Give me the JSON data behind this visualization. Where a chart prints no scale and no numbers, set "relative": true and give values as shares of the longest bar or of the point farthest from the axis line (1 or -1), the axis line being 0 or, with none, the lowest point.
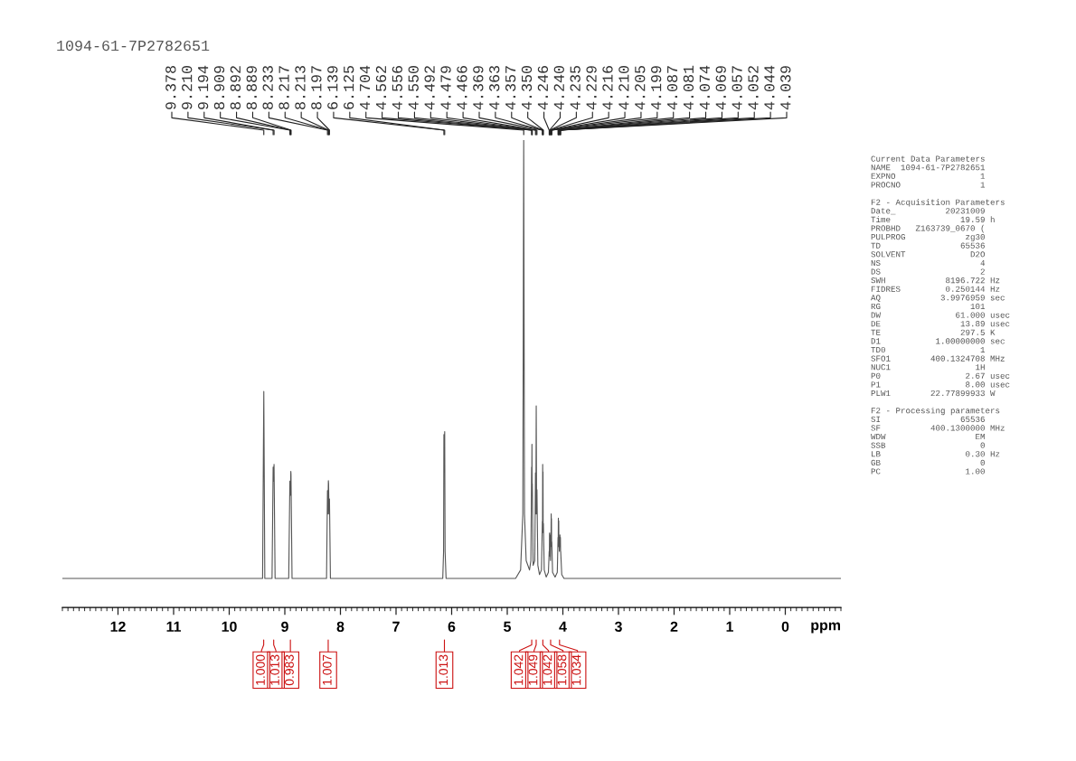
{
  "chart_data": {
    "type": "line",
    "title": "1094-61-7P2782651",
    "xlabel": "ppm",
    "relative": true,
    "xlim": [
      13,
      -1
    ],
    "xticks": [
      {
        "value": 13,
        "label": null
      },
      {
        "value": 12.9,
        "label": null
      },
      {
        "value": 12.8,
        "label": null
      },
      {
        "value": 12.7,
        "label": null
      },
      {
        "value": 12.6,
        "label": null
      },
      {
        "value": 12.5,
        "label": null
      },
      {
        "value": 12.4,
        "label": null
      },
      {
        "value": 12.3,
        "label": null
      },
      {
        "value": 12.2,
        "label": null
      },
      {
        "value": 12.1,
        "label": null
      },
      12,
      {
        "value": 11.9,
        "label": null
      },
      {
        "value": 11.8,
        "label": null
      },
      {
        "value": 11.7,
        "label": null
      },
      {
        "value": 11.6,
        "label": null
      },
      {
        "value": 11.5,
        "label": null
      },
      {
        "value": 11.4,
        "label": null
      },
      {
        "value": 11.3,
        "label": null
      },
      {
        "value": 11.2,
        "label": null
      },
      {
        "value": 11.1,
        "label": null
      },
      11,
      {
        "value": 10.9,
        "label": null
      },
      {
        "value": 10.8,
        "label": null
      },
      {
        "value": 10.7,
        "label": null
      },
      {
        "value": 10.6,
        "label": null
      },
      {
        "value": 10.5,
        "label": null
      },
      {
        "value": 10.4,
        "label": null
      },
      {
        "value": 10.3,
        "label": null
      },
      {
        "value": 10.2,
        "label": null
      },
      {
        "value": 10.1,
        "label": null
      },
      10,
      {
        "value": 9.9,
        "label": null
      },
      {
        "value": 9.8,
        "label": null
      },
      {
        "value": 9.7,
        "label": null
      },
      {
        "value": 9.6,
        "label": null
      },
      {
        "value": 9.5,
        "label": null
      },
      {
        "value": 9.4,
        "label": null
      },
      {
        "value": 9.3,
        "label": null
      },
      {
        "value": 9.2,
        "label": null
      },
      {
        "value": 9.1,
        "label": null
      },
      9,
      {
        "value": 8.9,
        "label": null
      },
      {
        "value": 8.8,
        "label": null
      },
      {
        "value": 8.7,
        "label": null
      },
      {
        "value": 8.6,
        "label": null
      },
      {
        "value": 8.5,
        "label": null
      },
      {
        "value": 8.4,
        "label": null
      },
      {
        "value": 8.3,
        "label": null
      },
      {
        "value": 8.2,
        "label": null
      },
      {
        "value": 8.1,
        "label": null
      },
      8,
      {
        "value": 7.9,
        "label": null
      },
      {
        "value": 7.8,
        "label": null
      },
      {
        "value": 7.7,
        "label": null
      },
      {
        "value": 7.6,
        "label": null
      },
      {
        "value": 7.5,
        "label": null
      },
      {
        "value": 7.4,
        "label": null
      },
      {
        "value": 7.3,
        "label": null
      },
      {
        "value": 7.2,
        "label": null
      },
      {
        "value": 7.1,
        "label": null
      },
      7,
      {
        "value": 6.9,
        "label": null
      },
      {
        "value": 6.8,
        "label": null
      },
      {
        "value": 6.7,
        "label": null
      },
      {
        "value": 6.6,
        "label": null
      },
      {
        "value": 6.5,
        "label": null
      },
      {
        "value": 6.4,
        "label": null
      },
      {
        "value": 6.3,
        "label": null
      },
      {
        "value": 6.2,
        "label": null
      },
      {
        "value": 6.1,
        "label": null
      },
      6,
      {
        "value": 5.9,
        "label": null
      },
      {
        "value": 5.8,
        "label": null
      },
      {
        "value": 5.7,
        "label": null
      },
      {
        "value": 5.6,
        "label": null
      },
      {
        "value": 5.5,
        "label": null
      },
      {
        "value": 5.4,
        "label": null
      },
      {
        "value": 5.3,
        "label": null
      },
      {
        "value": 5.2,
        "label": null
      },
      {
        "value": 5.1,
        "label": null
      },
      5,
      {
        "value": 4.9,
        "label": null
      },
      {
        "value": 4.8,
        "label": null
      },
      {
        "value": 4.7,
        "label": null
      },
      {
        "value": 4.6,
        "label": null
      },
      {
        "value": 4.5,
        "label": null
      },
      {
        "value": 4.4,
        "label": null
      },
      {
        "value": 4.3,
        "label": null
      },
      {
        "value": 4.2,
        "label": null
      },
      {
        "value": 4.1,
        "label": null
      },
      4,
      {
        "value": 3.9,
        "label": null
      },
      {
        "value": 3.8,
        "label": null
      },
      {
        "value": 3.7,
        "label": null
      },
      {
        "value": 3.6,
        "label": null
      },
      {
        "value": 3.5,
        "label": null
      },
      {
        "value": 3.4,
        "label": null
      },
      {
        "value": 3.3,
        "label": null
      },
      {
        "value": 3.2,
        "label": null
      },
      {
        "value": 3.1,
        "label": null
      },
      3,
      {
        "value": 2.9,
        "label": null
      },
      {
        "value": 2.8,
        "label": null
      },
      {
        "value": 2.7,
        "label": null
      },
      {
        "value": 2.6,
        "label": null
      },
      {
        "value": 2.5,
        "label": null
      },
      {
        "value": 2.4,
        "label": null
      },
      {
        "value": 2.3,
        "label": null
      },
      {
        "value": 2.2,
        "label": null
      },
      {
        "value": 2.1,
        "label": null
      },
      2,
      {
        "value": 1.9,
        "label": null
      },
      {
        "value": 1.8,
        "label": null
      },
      {
        "value": 1.7,
        "label": null
      },
      {
        "value": 1.6,
        "label": null
      },
      {
        "value": 1.5,
        "label": null
      },
      {
        "value": 1.4,
        "label": null
      },
      {
        "value": 1.3,
        "label": null
      },
      {
        "value": 1.2,
        "label": null
      },
      {
        "value": 1.1,
        "label": null
      },
      1,
      {
        "value": 0.9,
        "label": null
      },
      {
        "value": 0.8,
        "label": null
      },
      {
        "value": 0.7,
        "label": null
      },
      {
        "value": 0.6,
        "label": null
      },
      {
        "value": 0.5,
        "label": null
      },
      {
        "value": 0.4,
        "label": null
      },
      {
        "value": 0.3,
        "label": null
      },
      {
        "value": 0.2,
        "label": null
      },
      {
        "value": 0.1,
        "label": null
      },
      0,
      {
        "value": -0.1,
        "label": null
      },
      {
        "value": -0.2,
        "label": null
      },
      {
        "value": -0.3,
        "label": null
      },
      {
        "value": -0.4,
        "label": null
      },
      {
        "value": -0.5,
        "label": null
      },
      {
        "value": -0.6,
        "label": null
      },
      {
        "value": -0.7,
        "label": null
      },
      {
        "value": -0.8,
        "label": null
      },
      {
        "value": -0.9,
        "label": null
      },
      {
        "value": -1,
        "label": null
      }
    ],
    "series": [
      {
        "color": "#555555",
        "x": [
          13.0,
          9.4,
          9.378,
          9.36,
          9.23,
          9.21,
          9.202,
          9.194,
          9.175,
          8.93,
          8.909,
          8.9,
          8.892,
          8.889,
          8.87,
          8.25,
          8.233,
          8.225,
          8.217,
          8.213,
          8.205,
          8.197,
          8.18,
          6.16,
          6.145,
          6.139,
          6.132,
          6.125,
          6.118,
          6.1,
          4.85,
          4.76,
          4.72,
          4.704,
          4.69,
          4.66,
          4.6,
          4.575,
          4.562,
          4.559,
          4.556,
          4.553,
          4.55,
          4.535,
          4.505,
          4.492,
          4.486,
          4.479,
          4.472,
          4.466,
          4.45,
          4.42,
          4.385,
          4.369,
          4.366,
          4.363,
          4.36,
          4.357,
          4.354,
          4.35,
          4.335,
          4.3,
          4.26,
          4.246,
          4.243,
          4.24,
          4.237,
          4.235,
          4.232,
          4.229,
          4.222,
          4.216,
          4.213,
          4.21,
          4.207,
          4.205,
          4.202,
          4.199,
          4.185,
          4.14,
          4.1,
          4.087,
          4.084,
          4.081,
          4.078,
          4.074,
          4.071,
          4.069,
          4.063,
          4.057,
          4.054,
          4.052,
          4.048,
          4.044,
          4.041,
          4.039,
          4.02,
          3.98,
          -1.0
        ],
        "values": [
          0.062,
          0.062,
          0.462,
          0.062,
          0.062,
          0.3,
          0.27,
          0.306,
          0.062,
          0.062,
          0.27,
          0.24,
          0.291,
          0.285,
          0.062,
          0.062,
          0.25,
          0.2,
          0.271,
          0.265,
          0.2,
          0.232,
          0.062,
          0.062,
          0.12,
          0.37,
          0.33,
          0.376,
          0.12,
          0.062,
          0.062,
          0.08,
          0.2,
          1.0,
          0.2,
          0.1,
          0.08,
          0.1,
          0.3,
          0.25,
          0.349,
          0.25,
          0.265,
          0.09,
          0.1,
          0.288,
          0.2,
          0.431,
          0.2,
          0.252,
          0.09,
          0.07,
          0.08,
          0.184,
          0.16,
          0.306,
          0.25,
          0.29,
          0.16,
          0.18,
          0.08,
          0.065,
          0.075,
          0.12,
          0.11,
          0.159,
          0.14,
          0.155,
          0.11,
          0.12,
          0.1,
          0.16,
          0.15,
          0.2,
          0.17,
          0.19,
          0.13,
          0.14,
          0.075,
          0.065,
          0.075,
          0.15,
          0.13,
          0.191,
          0.16,
          0.185,
          0.13,
          0.14,
          0.12,
          0.15,
          0.13,
          0.155,
          0.13,
          0.15,
          0.12,
          0.12,
          0.07,
          0.062,
          0.062
        ]
      }
    ],
    "annotations": [
      {
        "text": "9.378",
        "x": 9.378
      },
      {
        "text": "9.210",
        "x": 9.21
      },
      {
        "text": "9.194",
        "x": 9.194
      },
      {
        "text": "8.909",
        "x": 8.909
      },
      {
        "text": "8.892",
        "x": 8.892
      },
      {
        "text": "8.889",
        "x": 8.889
      },
      {
        "text": "8.233",
        "x": 8.233
      },
      {
        "text": "8.217",
        "x": 8.217
      },
      {
        "text": "8.213",
        "x": 8.213
      },
      {
        "text": "8.197",
        "x": 8.197
      },
      {
        "text": "6.139",
        "x": 6.139
      },
      {
        "text": "6.125",
        "x": 6.125
      },
      {
        "text": "4.704",
        "x": 4.704
      },
      {
        "text": "4.562",
        "x": 4.562
      },
      {
        "text": "4.556",
        "x": 4.556
      },
      {
        "text": "4.550",
        "x": 4.55
      },
      {
        "text": "4.492",
        "x": 4.492
      },
      {
        "text": "4.479",
        "x": 4.479
      },
      {
        "text": "4.466",
        "x": 4.466
      },
      {
        "text": "4.369",
        "x": 4.369
      },
      {
        "text": "4.363",
        "x": 4.363
      },
      {
        "text": "4.357",
        "x": 4.357
      },
      {
        "text": "4.350",
        "x": 4.35
      },
      {
        "text": "4.246",
        "x": 4.246
      },
      {
        "text": "4.240",
        "x": 4.24
      },
      {
        "text": "4.235",
        "x": 4.235
      },
      {
        "text": "4.229",
        "x": 4.229
      },
      {
        "text": "4.216",
        "x": 4.216
      },
      {
        "text": "4.210",
        "x": 4.21
      },
      {
        "text": "4.205",
        "x": 4.205
      },
      {
        "text": "4.199",
        "x": 4.199
      },
      {
        "text": "4.087",
        "x": 4.087
      },
      {
        "text": "4.081",
        "x": 4.081
      },
      {
        "text": "4.074",
        "x": 4.074
      },
      {
        "text": "4.069",
        "x": 4.069
      },
      {
        "text": "4.057",
        "x": 4.057
      },
      {
        "text": "4.052",
        "x": 4.052
      },
      {
        "text": "4.044",
        "x": 4.044
      },
      {
        "text": "4.039",
        "x": 4.039
      },
      {
        "text": "1.000",
        "x": 9.38
      },
      {
        "text": "1.013",
        "x": 9.2
      },
      {
        "text": "0.983",
        "x": 8.9
      },
      {
        "text": "1.007",
        "x": 8.22
      },
      {
        "text": "1.013",
        "x": 6.13
      },
      {
        "text": "1.042",
        "x": 4.56
      },
      {
        "text": "1.049",
        "x": 4.48
      },
      {
        "text": "1.042",
        "x": 4.36
      },
      {
        "text": "1.058",
        "x": 4.22
      },
      {
        "text": "1.034",
        "x": 4.06
      },
      "Current Data Parameters\nNAME  1094-61-7P2782651\nEXPNO                 1\nPROCNO                1\n\nF2 - Acquisition Parameters\nDate_          20231009\nTime              19.59 h\nPROBHD   Z163739_0670 (\nPULPROG            zg30\nTD                65536\nSOLVENT             D2O\nNS                    4\nDS                    2\nSWH            8196.722 Hz\nFIDRES         0.250144 Hz\nAQ            3.9976959 sec\nRG                  101\nDW               61.000 usec\nDE                13.89 usec\nTE                297.5 K\nD1           1.00000000 sec\nTD0                   1\nSFO1        400.1324708 MHz\nNUC1                 1H\nP0                 2.67 usec\nP1                 8.00 usec\nPLW1        22.77899933 W\n\nF2 - Processing parameters\nSI                65536\nSF          400.1300000 MHz\nWDW                  EM\nSSB                   0\nLB                 0.30 Hz\nGB                    0\nPC                 1.00"
    ]
  }
}
